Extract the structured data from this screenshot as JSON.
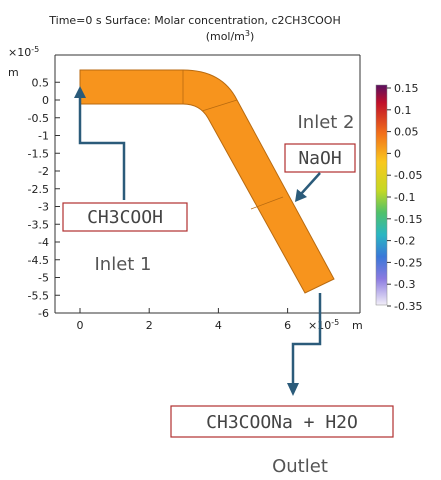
{
  "figure": {
    "title_line1": "Time=0 s Surface: Molar concentration, c2CH3COOH",
    "title_line2": "(mol/m",
    "title_line2_sup": "3",
    "title_line2_end": ")",
    "y_axis_exponent": "×10",
    "y_axis_exponent_power": "-5",
    "y_axis_unit": "m",
    "x_axis_exponent": "×10",
    "x_axis_exponent_power": "-5",
    "x_axis_unit": "m",
    "shape_color": "#f7941d",
    "shape_edge_color": "#b86a10"
  },
  "chart_data": {
    "type": "heatmap",
    "title": "Time=0 s Surface: Molar concentration, c2CH3COOH (mol/m3)",
    "x_ticks": [
      0,
      2,
      4,
      6
    ],
    "y_ticks": [
      0.5,
      0,
      -0.5,
      -1,
      -1.5,
      -2,
      -2.5,
      -3,
      -3.5,
      -4,
      -4.5,
      -5,
      -5.5,
      -6
    ],
    "y_tick_labels": [
      "0.5",
      "0",
      "-0.5",
      "-1",
      "-1.5",
      "-2",
      "-2.5",
      "-3",
      "-3.5",
      "-4",
      "-4.5",
      "-5",
      "-5.5",
      "-6"
    ],
    "xlim": [
      -0.75,
      7.6
    ],
    "ylim": [
      -6,
      1
    ],
    "colorbar_ticks": [
      0.15,
      0.1,
      0.05,
      0,
      -0.05,
      -0.1,
      -0.15,
      -0.2,
      -0.25,
      -0.3,
      -0.35
    ],
    "colorbar_tick_labels": [
      "0.15",
      "0.1",
      "0.05",
      "0",
      "-0.05",
      "-0.1",
      "-0.15",
      "-0.2",
      "-0.25",
      "-0.3",
      "-0.35"
    ],
    "colorbar_range": [
      -0.35,
      0.15
    ]
  },
  "annotations": {
    "inlet1_box": "CH3COOH",
    "inlet1_label": "Inlet 1",
    "inlet2_label": "Inlet 2",
    "inlet2_box": "NaOH",
    "outlet_box": "CH3COONa + H2O",
    "outlet_label": "Outlet",
    "arrow_color": "#2b5b7a",
    "box_border_color": "#b03030"
  }
}
